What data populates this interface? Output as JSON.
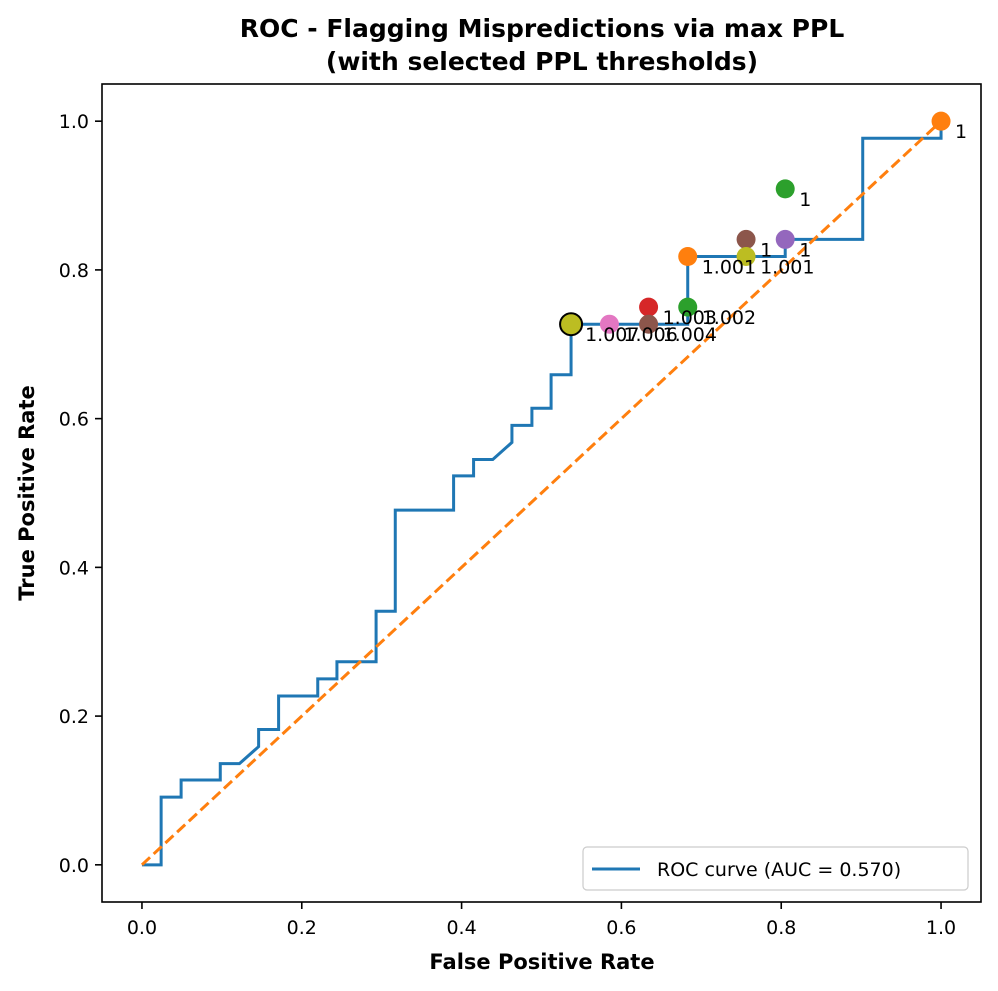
{
  "chart_data": {
    "type": "line",
    "title_lines": [
      "ROC - Flagging Mispredictions via max PPL",
      "(with selected PPL thresholds)"
    ],
    "xlabel": "False Positive Rate",
    "ylabel": "True Positive Rate",
    "xlim": [
      -0.05,
      1.05
    ],
    "ylim": [
      -0.05,
      1.05
    ],
    "xticks": [
      0.0,
      0.2,
      0.4,
      0.6,
      0.8,
      1.0
    ],
    "xtick_labels": [
      "0.0",
      "0.2",
      "0.4",
      "0.6",
      "0.8",
      "1.0"
    ],
    "yticks": [
      0.0,
      0.2,
      0.4,
      0.6,
      0.8,
      1.0
    ],
    "ytick_labels": [
      "0.0",
      "0.2",
      "0.4",
      "0.6",
      "0.8",
      "1.0"
    ],
    "legend": {
      "label": "ROC curve (AUC = 0.570)",
      "location": "lower right"
    },
    "roc_color": "#1f77b4",
    "chance_color": "#ff7f0e",
    "roc_curve": {
      "fpr": [
        0.0,
        0.024,
        0.024,
        0.049,
        0.049,
        0.098,
        0.098,
        0.122,
        0.146,
        0.146,
        0.171,
        0.171,
        0.22,
        0.22,
        0.244,
        0.244,
        0.293,
        0.293,
        0.317,
        0.317,
        0.39,
        0.39,
        0.415,
        0.415,
        0.439,
        0.463,
        0.463,
        0.488,
        0.488,
        0.512,
        0.512,
        0.537,
        0.537,
        0.683,
        0.683,
        0.805,
        0.805,
        0.902,
        0.902,
        1.0,
        1.0
      ],
      "tpr": [
        0.0,
        0.0,
        0.091,
        0.091,
        0.114,
        0.114,
        0.136,
        0.136,
        0.159,
        0.182,
        0.182,
        0.227,
        0.227,
        0.25,
        0.25,
        0.273,
        0.273,
        0.341,
        0.341,
        0.477,
        0.477,
        0.523,
        0.523,
        0.545,
        0.545,
        0.568,
        0.591,
        0.591,
        0.614,
        0.614,
        0.659,
        0.659,
        0.727,
        0.727,
        0.818,
        0.818,
        0.841,
        0.841,
        0.977,
        0.977,
        1.0
      ]
    },
    "chance_line": {
      "x": [
        0,
        1
      ],
      "y": [
        0,
        1
      ]
    },
    "threshold_points": [
      {
        "fpr": 1.0,
        "tpr": 1.0,
        "label": "1",
        "color": "#ff7f0e",
        "edge": false
      },
      {
        "fpr": 0.805,
        "tpr": 0.909,
        "label": "1",
        "color": "#2ca02c",
        "edge": false
      },
      {
        "fpr": 0.805,
        "tpr": 0.841,
        "label": "1",
        "color": "#9467bd",
        "edge": false
      },
      {
        "fpr": 0.756,
        "tpr": 0.841,
        "label": "1",
        "color": "#8c564b",
        "edge": false
      },
      {
        "fpr": 0.756,
        "tpr": 0.818,
        "label": "1.001",
        "color": "#bcbd22",
        "edge": false
      },
      {
        "fpr": 0.683,
        "tpr": 0.818,
        "label": "1.001",
        "color": "#ff7f0e",
        "edge": false
      },
      {
        "fpr": 0.683,
        "tpr": 0.75,
        "label": "1.002",
        "color": "#2ca02c",
        "edge": false
      },
      {
        "fpr": 0.634,
        "tpr": 0.75,
        "label": "1.003",
        "color": "#d62728",
        "edge": false
      },
      {
        "fpr": 0.634,
        "tpr": 0.727,
        "label": "1.004",
        "color": "#8c564b",
        "edge": false
      },
      {
        "fpr": 0.585,
        "tpr": 0.727,
        "label": "1.006",
        "color": "#e377c2",
        "edge": false
      },
      {
        "fpr": 0.537,
        "tpr": 0.727,
        "label": "1.007",
        "color": "#bcbd22",
        "edge": true
      }
    ]
  }
}
